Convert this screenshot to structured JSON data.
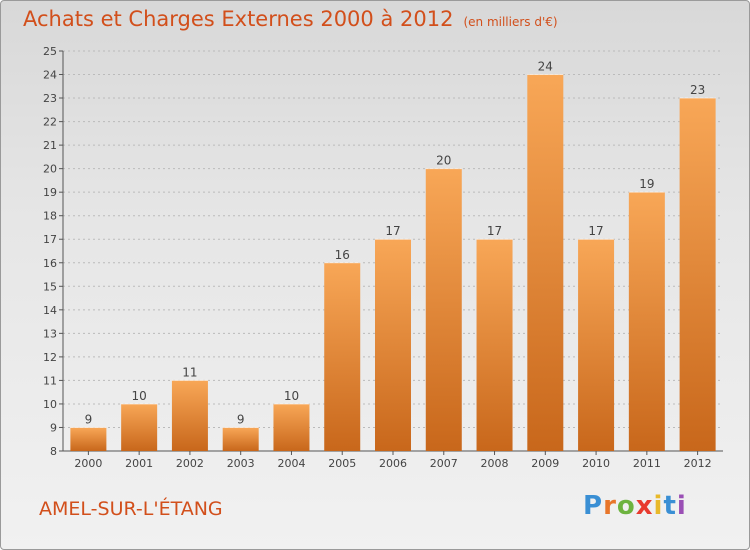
{
  "header": {
    "title": "Achats et Charges Externes 2000 à 2012",
    "subtitle": "(en milliers d'€)"
  },
  "footer": {
    "commune": "AMEL-SUR-L'ÉTANG",
    "logo_letters": [
      {
        "char": "P",
        "color": "#3a8fd4"
      },
      {
        "char": "r",
        "color": "#e8762a"
      },
      {
        "char": "o",
        "color": "#6db33f"
      },
      {
        "char": "x",
        "color": "#e83a2e"
      },
      {
        "char": "i",
        "color": "#e8b92a"
      },
      {
        "char": "t",
        "color": "#3a8fd4"
      },
      {
        "char": "i",
        "color": "#9a4fb5"
      }
    ]
  },
  "colors": {
    "bar_top": "#f8a757",
    "bar_bottom": "#c8671b",
    "title": "#d24f1b",
    "grid": "#bbbbbb"
  },
  "chart_data": {
    "type": "bar",
    "title": "Achats et Charges Externes 2000 à 2012",
    "subtitle": "(en milliers d'€)",
    "categories": [
      "2000",
      "2001",
      "2002",
      "2003",
      "2004",
      "2005",
      "2006",
      "2007",
      "2008",
      "2009",
      "2010",
      "2011",
      "2012"
    ],
    "values": [
      9,
      10,
      11,
      9,
      10,
      16,
      17,
      20,
      17,
      24,
      17,
      19,
      23
    ],
    "ylim": [
      8,
      25
    ],
    "yticks": [
      8,
      9,
      10,
      11,
      12,
      13,
      14,
      15,
      16,
      17,
      18,
      19,
      20,
      21,
      22,
      23,
      24,
      25
    ],
    "grid": true,
    "xlabel": "",
    "ylabel": ""
  }
}
